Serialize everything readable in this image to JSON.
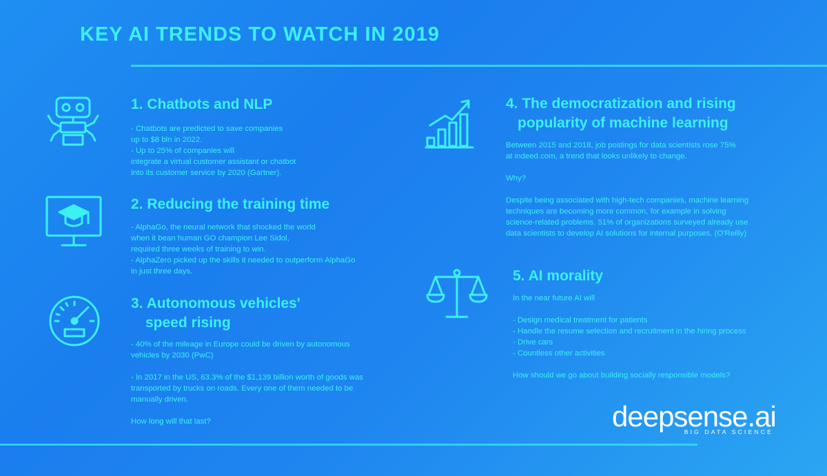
{
  "title": "KEY AI TRENDS TO WATCH IN 2019",
  "sections": [
    {
      "heading": "1. Chatbots and NLP",
      "icon": "robot-icon",
      "body": "- Chatbots are predicted to save companies\nup to $8 bln in 2022.\n- Up to 25% of companies will\nintegrate a virtual customer assistant or chatbot\ninto its customer service by 2020 (Gartner)."
    },
    {
      "heading": "2. Reducing the training time",
      "icon": "monitor-graduation-cap-icon",
      "body": "- AlphaGo, the neural network that shocked the world\nwhen it bean human GO champion Lee Sidol,\nrequired three weeks of training to win.\n- AlphaZero picked up the skills it needed to outperform AlphaGo\nin just three days."
    },
    {
      "heading_line1": "3. Autonomous vehicles'",
      "heading_line2": "speed rising",
      "icon": "speedometer-icon",
      "body": "- 40% of the mileage in Europe could be driven by autonomous\nvehicles by 2030 (PwC)\n\n- In 2017 in the US, 63.3% of the $1,139 billion worth of goods was\ntransported by trucks on roads. Every one of them needed to be\nmanually driven.\n\nHow long will that last?"
    },
    {
      "heading_line1": "4. The democratization and rising",
      "heading_line2": "popularity of machine learning",
      "icon": "growth-chart-icon",
      "body": "Between 2015 and 2018, job postings for data scientists rose 75%\nat indeed.com, a trend that looks unlikely to change.\n\nWhy?\n\nDespite being associated with high-tech companies, machine learning\ntechniques are becoming more common, for example in solving\nscience-related problems. 51% of organizations surveyed already use\ndata scientists to develop AI solutions for internal purposes. (O'Reilly)"
    },
    {
      "heading": "5. AI morality",
      "icon": "scales-icon",
      "body": "In the near future AI will\n\n- Design medical treatment for patients\n- Handle the resume selection and recruitment in the hiring process\n- Drive cars\n- Countless other activities\n\nHow should we go about building socially responsible models?"
    }
  ],
  "logo": {
    "word": "deepsense.ai",
    "tagline": "BIG DATA SCIENCE"
  },
  "colors": {
    "accent": "#3cf0f4",
    "background": "#1a7eee",
    "logo": "#ffffff"
  }
}
